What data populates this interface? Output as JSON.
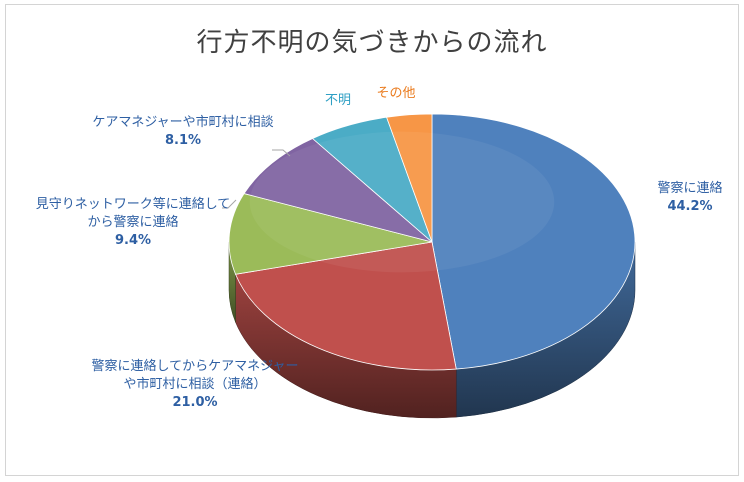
{
  "chart_data": {
    "type": "pie",
    "title": "行方不明の気づきからの流れ",
    "slices": [
      {
        "name": "警察に連絡",
        "value": 44.2,
        "label_lines": [
          "警察に連絡"
        ],
        "value_label": "44.2%",
        "color": "#4f81bd",
        "label_color": "#2e5fa3"
      },
      {
        "name": "警察に連絡してからケアマネジャーや市町村に相談（連絡）",
        "value": 21.0,
        "label_lines": [
          "警察に連絡してからケアマネジャー",
          "や市町村に相談（連絡）"
        ],
        "value_label": "21.0%",
        "color": "#c0504d",
        "label_color": "#2e5fa3"
      },
      {
        "name": "見守りネットワーク等に連絡してから警察に連絡",
        "value": 9.4,
        "label_lines": [
          "見守りネットワーク等に連絡して",
          "から警察に連絡"
        ],
        "value_label": "9.4%",
        "color": "#9bbb59",
        "label_color": "#2e5fa3"
      },
      {
        "name": "ケアマネジャーや市町村に相談",
        "value": 8.1,
        "label_lines": [
          "ケアマネジャーや市町村に相談"
        ],
        "value_label": "8.1%",
        "color": "#8064a2",
        "label_color": "#2e5fa3"
      },
      {
        "name": "不明",
        "value": 5.9,
        "label_lines": [
          "不明"
        ],
        "value_label": "",
        "color": "#4bacc6",
        "label_color": "#2e9fc4"
      },
      {
        "name": "その他",
        "value": 3.3,
        "label_lines": [
          "その他"
        ],
        "value_label": "",
        "color": "#f79646",
        "label_color": "#ea7b1e"
      }
    ]
  }
}
